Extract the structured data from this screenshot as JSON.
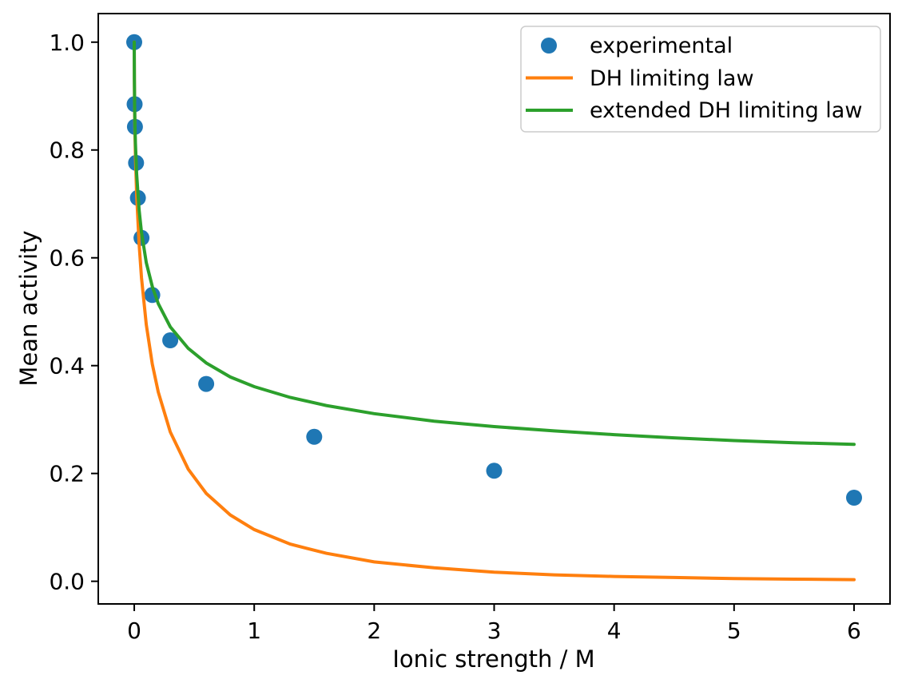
{
  "figure": {
    "background_color": "#ffffff",
    "spine_color": "#000000",
    "legend_border_color": "#cccccc"
  },
  "chart_data": {
    "type": "scatter",
    "title": "",
    "xlabel": "Ionic strength / M",
    "ylabel": "Mean activity",
    "xlim": [
      -0.3,
      6.3
    ],
    "ylim": [
      -0.042,
      1.053
    ],
    "xticks": [
      0,
      1,
      2,
      3,
      4,
      5,
      6
    ],
    "xtick_labels": [
      "0",
      "1",
      "2",
      "3",
      "4",
      "5",
      "6"
    ],
    "yticks": [
      0.0,
      0.2,
      0.4,
      0.6,
      0.8,
      1.0
    ],
    "ytick_labels": [
      "0.0",
      "0.2",
      "0.4",
      "0.6",
      "0.8",
      "1.0"
    ],
    "grid": false,
    "legend_position": "upper right",
    "series": [
      {
        "name": "experimental",
        "plot_type": "scatter",
        "color": "#1f77b4",
        "marker": "circle",
        "marker_radius": 10,
        "x": [
          0,
          0.003,
          0.006,
          0.015,
          0.03,
          0.06,
          0.15,
          0.3,
          0.6,
          1.5,
          3.0,
          6.0
        ],
        "y": [
          1.0,
          0.885,
          0.843,
          0.776,
          0.711,
          0.637,
          0.531,
          0.447,
          0.366,
          0.268,
          0.205,
          0.155
        ]
      },
      {
        "name": "DH limiting law",
        "plot_type": "line",
        "color": "#ff7f0e",
        "line_width": 4,
        "x": [
          0,
          0.001,
          0.003,
          0.006,
          0.01,
          0.02,
          0.04,
          0.06,
          0.1,
          0.15,
          0.2,
          0.3,
          0.45,
          0.6,
          0.8,
          1.0,
          1.3,
          1.6,
          2.0,
          2.5,
          3.0,
          3.5,
          4.0,
          4.5,
          5.0,
          5.5,
          6.0
        ],
        "y": [
          1.0,
          0.929,
          0.879,
          0.834,
          0.791,
          0.718,
          0.626,
          0.563,
          0.476,
          0.403,
          0.351,
          0.277,
          0.208,
          0.163,
          0.123,
          0.096,
          0.069,
          0.052,
          0.036,
          0.025,
          0.017,
          0.012,
          0.009,
          0.007,
          0.005,
          0.004,
          0.003
        ]
      },
      {
        "name": "extended DH limiting law",
        "plot_type": "line",
        "color": "#2ca02c",
        "line_width": 4,
        "x": [
          0,
          0.001,
          0.003,
          0.006,
          0.01,
          0.02,
          0.04,
          0.06,
          0.1,
          0.15,
          0.2,
          0.3,
          0.45,
          0.6,
          0.8,
          1.0,
          1.3,
          1.6,
          2.0,
          2.5,
          3.0,
          3.5,
          4.0,
          4.5,
          5.0,
          5.5,
          6.0
        ],
        "y": [
          1.0,
          0.931,
          0.887,
          0.848,
          0.813,
          0.756,
          0.689,
          0.647,
          0.591,
          0.547,
          0.515,
          0.472,
          0.432,
          0.405,
          0.379,
          0.361,
          0.341,
          0.326,
          0.311,
          0.297,
          0.287,
          0.279,
          0.272,
          0.266,
          0.261,
          0.257,
          0.254
        ]
      }
    ]
  }
}
